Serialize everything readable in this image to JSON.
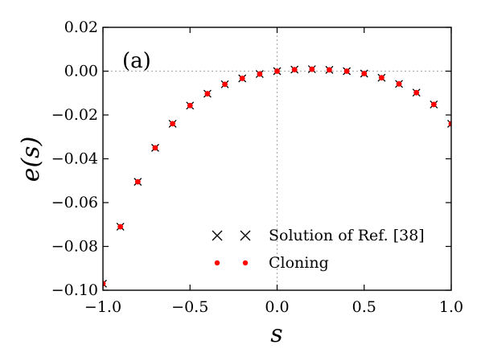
{
  "chart_data": {
    "type": "scatter",
    "panel_label": "(a)",
    "xlabel": "s",
    "ylabel": "e(s)",
    "xlim": [
      -1.0,
      1.0
    ],
    "ylim": [
      -0.1,
      0.02
    ],
    "x_ticks": [
      "−1.0",
      "−0.5",
      "0.0",
      "0.5",
      "1.0"
    ],
    "x_tick_values": [
      -1.0,
      -0.5,
      0.0,
      0.5,
      1.0
    ],
    "y_ticks": [
      "0.02",
      "0.00",
      "−0.02",
      "−0.04",
      "−0.06",
      "−0.08",
      "−0.10"
    ],
    "y_tick_values": [
      0.02,
      0.0,
      -0.02,
      -0.04,
      -0.06,
      -0.08,
      -0.1
    ],
    "reference_lines": {
      "x": 0.0,
      "y": 0.0,
      "style": "dotted",
      "color": "#aaaaaa"
    },
    "legend_position": "lower-right",
    "series": [
      {
        "name": "Solution of Ref. [38]",
        "marker": "x",
        "color": "#000000",
        "x": [
          -1.0,
          -0.9,
          -0.8,
          -0.7,
          -0.6,
          -0.5,
          -0.4,
          -0.3,
          -0.2,
          -0.1,
          0.0,
          0.1,
          0.2,
          0.3,
          0.4,
          0.5,
          0.6,
          0.7,
          0.8,
          0.9,
          1.0
        ],
        "y": [
          -0.097,
          -0.071,
          -0.0505,
          -0.035,
          -0.024,
          -0.0157,
          -0.0103,
          -0.006,
          -0.0033,
          -0.0013,
          0.0,
          0.0007,
          0.0009,
          0.0006,
          0.0,
          -0.0011,
          -0.003,
          -0.0058,
          -0.0098,
          -0.0152,
          -0.024
        ]
      },
      {
        "name": "Cloning",
        "marker": "dot",
        "color": "#ff0000",
        "x": [
          -1.0,
          -0.9,
          -0.8,
          -0.7,
          -0.6,
          -0.5,
          -0.4,
          -0.3,
          -0.2,
          -0.1,
          0.0,
          0.1,
          0.2,
          0.3,
          0.4,
          0.5,
          0.6,
          0.7,
          0.8,
          0.9,
          1.0
        ],
        "y": [
          -0.097,
          -0.071,
          -0.0505,
          -0.035,
          -0.024,
          -0.0157,
          -0.0103,
          -0.006,
          -0.0033,
          -0.0013,
          0.0,
          0.0007,
          0.0009,
          0.0006,
          0.0,
          -0.0011,
          -0.003,
          -0.0058,
          -0.0098,
          -0.0152,
          -0.024
        ]
      }
    ]
  }
}
